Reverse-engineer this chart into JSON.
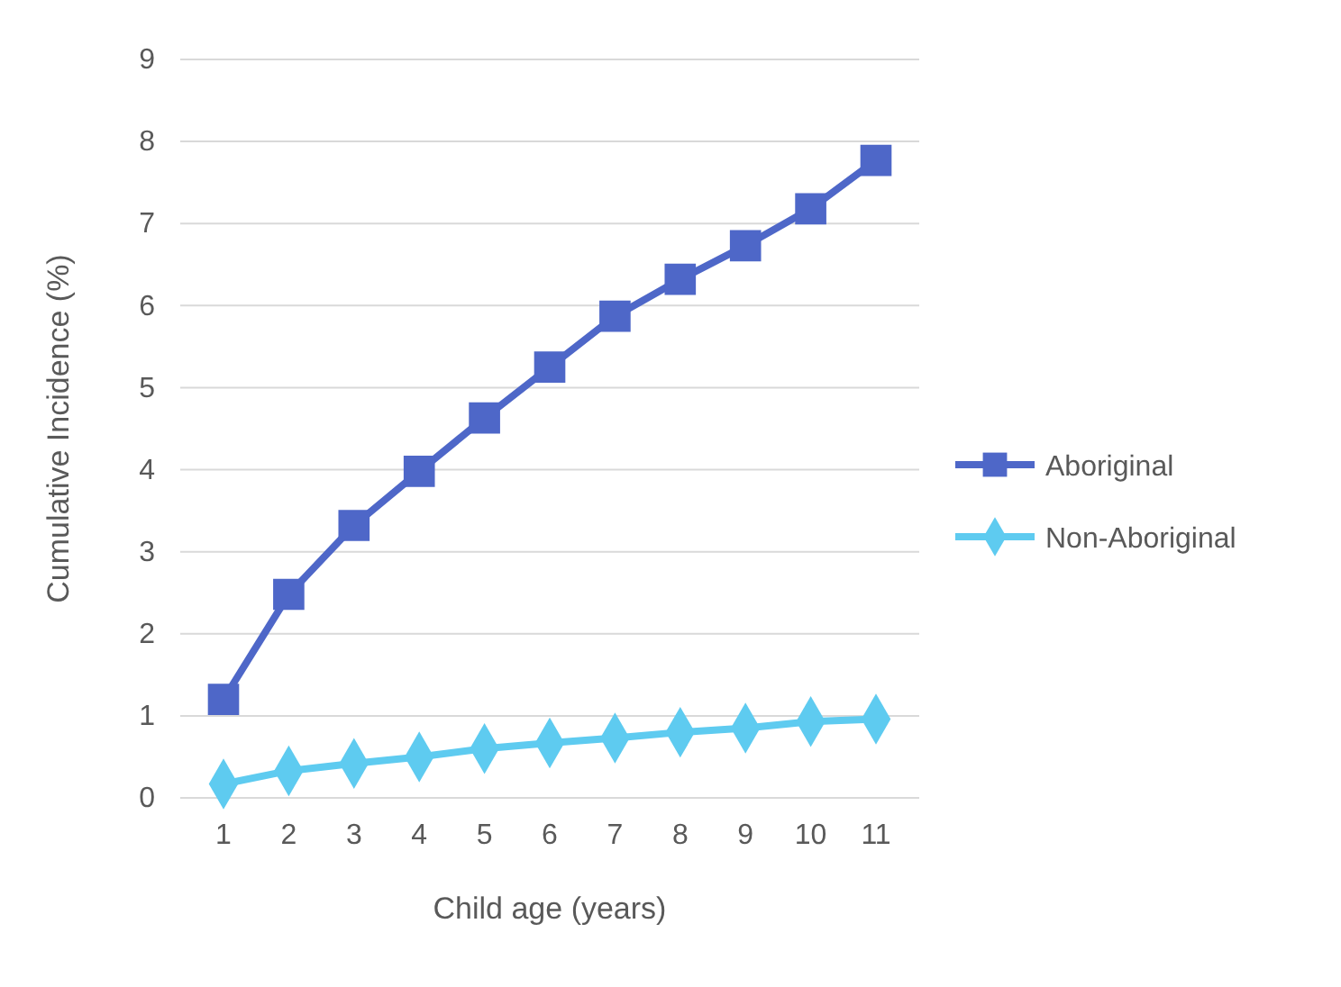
{
  "chart_data": {
    "type": "line",
    "xlabel": "Child age (years)",
    "ylabel": "Cumulative Incidence (%)",
    "categories": [
      "1",
      "2",
      "3",
      "4",
      "5",
      "6",
      "7",
      "8",
      "9",
      "10",
      "11"
    ],
    "series": [
      {
        "name": "Aboriginal",
        "color": "#4e67c8",
        "marker": "square",
        "values": [
          1.2,
          2.48,
          3.32,
          3.98,
          4.63,
          5.25,
          5.87,
          6.32,
          6.73,
          7.18,
          7.77
        ]
      },
      {
        "name": "Non-Aboriginal",
        "color": "#5ecbf0",
        "marker": "diamond",
        "values": [
          0.17,
          0.33,
          0.42,
          0.5,
          0.6,
          0.67,
          0.73,
          0.8,
          0.85,
          0.93,
          0.96
        ]
      }
    ],
    "ylim": [
      0,
      9
    ],
    "yticks": [
      0,
      1,
      2,
      3,
      4,
      5,
      6,
      7,
      8,
      9
    ],
    "grid": "y",
    "legend": "right"
  }
}
